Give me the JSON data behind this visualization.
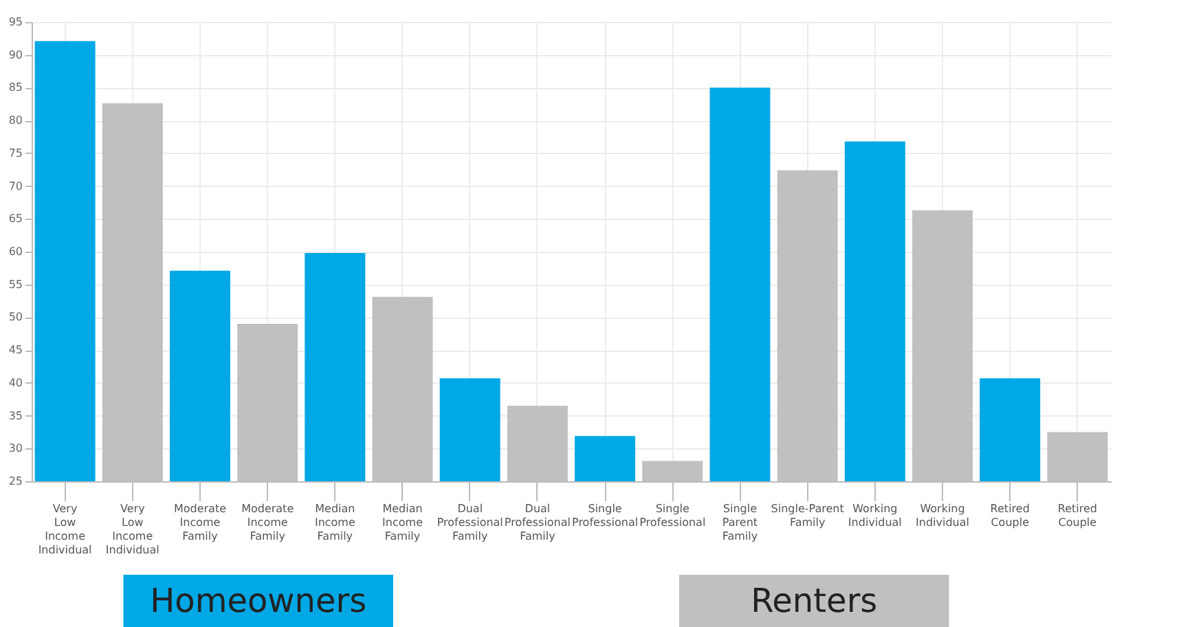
{
  "chart_data": {
    "type": "bar",
    "categories": [
      "Very Low Income Individual",
      "Very Low Income Individual",
      "Moderate Income Family",
      "Moderate Income Family",
      "Median Income Family",
      "Median Income Family",
      "Dual Professional Family",
      "Dual Professional Family",
      "Single Professional",
      "Single Professional",
      "Single Parent Family",
      "Single-Parent Family",
      "Working Individual",
      "Working Individual",
      "Retired Couple",
      "Retired Couple"
    ],
    "series": [
      {
        "name": "Homeowners",
        "color": "#00a8e6",
        "values": [
          92.1,
          null,
          57.1,
          null,
          59.8,
          null,
          40.7,
          null,
          31.9,
          null,
          85.0,
          null,
          76.8,
          null,
          40.7,
          null
        ]
      },
      {
        "name": "Renters",
        "color": "#c0c0c0",
        "values": [
          null,
          82.6,
          null,
          49.0,
          null,
          53.1,
          null,
          36.5,
          null,
          28.1,
          null,
          72.4,
          null,
          66.3,
          null,
          32.5
        ]
      }
    ],
    "ylim": [
      25,
      95
    ],
    "yticks": [
      25,
      30,
      35,
      40,
      45,
      50,
      55,
      60,
      65,
      70,
      75,
      80,
      85,
      90,
      95
    ],
    "grid": true,
    "legend": "bottom"
  }
}
